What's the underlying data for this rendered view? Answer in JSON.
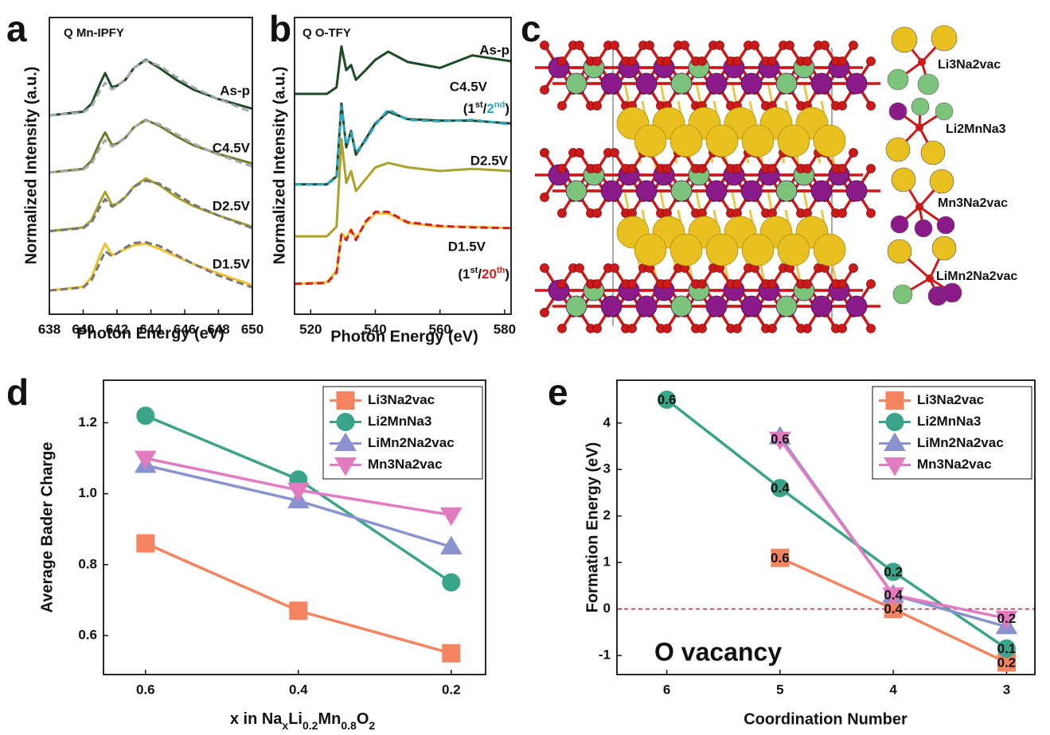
{
  "chart_data": [
    {
      "type": "line",
      "panel_label": "a",
      "title": "Q Mn-IPFY",
      "x_label": "Photon Energy (eV)",
      "y_label": "Normalized Intensity (a.u.)",
      "x": [
        638,
        640,
        640.5,
        641,
        641.3,
        641.7,
        642,
        642.5,
        643,
        643.7,
        644.5,
        645.5,
        646.5,
        648,
        650
      ],
      "xlim": [
        638,
        650
      ],
      "xticks": [
        638,
        640,
        642,
        644,
        646,
        648,
        650
      ],
      "ylim": [
        0,
        4
      ],
      "legend": false,
      "series": [
        {
          "name": "As-p",
          "color": "#1d4a27",
          "values": [
            2.68,
            2.73,
            2.84,
            3.11,
            3.25,
            3.06,
            3.08,
            3.16,
            3.32,
            3.43,
            3.32,
            3.16,
            3.03,
            2.9,
            2.77
          ]
        },
        {
          "color": "#a8a8a8",
          "dash": true,
          "values": [
            2.68,
            2.72,
            2.8,
            3.02,
            3.12,
            3.03,
            3.07,
            3.17,
            3.32,
            3.42,
            3.35,
            3.2,
            3.06,
            2.9,
            2.72
          ]
        },
        {
          "name": "C4.5V",
          "color": "#6b7a2c",
          "values": [
            1.91,
            1.96,
            2.07,
            2.33,
            2.45,
            2.28,
            2.3,
            2.38,
            2.52,
            2.62,
            2.54,
            2.4,
            2.28,
            2.16,
            2.03
          ]
        },
        {
          "color": "#a8a8a8",
          "dash": true,
          "values": [
            1.91,
            1.95,
            2.03,
            2.25,
            2.35,
            2.26,
            2.29,
            2.38,
            2.52,
            2.61,
            2.56,
            2.43,
            2.3,
            2.15,
            1.99
          ]
        },
        {
          "name": "D2.5V",
          "color": "#a9a22a",
          "values": [
            1.12,
            1.17,
            1.27,
            1.52,
            1.65,
            1.47,
            1.49,
            1.58,
            1.72,
            1.83,
            1.74,
            1.58,
            1.46,
            1.33,
            1.18
          ]
        },
        {
          "color": "#777777",
          "dash": true,
          "values": [
            1.12,
            1.16,
            1.24,
            1.45,
            1.55,
            1.45,
            1.48,
            1.58,
            1.72,
            1.8,
            1.76,
            1.62,
            1.48,
            1.33,
            1.16
          ]
        },
        {
          "name": "D1.5V",
          "color": "#f1c22e",
          "values": [
            0.32,
            0.37,
            0.5,
            0.8,
            0.95,
            0.8,
            0.82,
            0.88,
            0.93,
            0.95,
            0.88,
            0.78,
            0.68,
            0.55,
            0.39
          ]
        },
        {
          "color": "#777777",
          "dash": true,
          "values": [
            0.32,
            0.36,
            0.46,
            0.7,
            0.85,
            0.78,
            0.82,
            0.9,
            0.96,
            0.97,
            0.92,
            0.8,
            0.68,
            0.52,
            0.36
          ]
        }
      ]
    },
    {
      "type": "line",
      "panel_label": "b",
      "title": "Q O-TFY",
      "x_label": "Photon Energy (eV)",
      "y_label": "Normalized Intensity (a.u.)",
      "x": [
        515,
        525,
        528,
        529.5,
        531,
        532.5,
        534,
        537,
        540,
        544,
        550,
        560,
        570,
        582
      ],
      "xlim": [
        515,
        582
      ],
      "xticks": [
        520,
        540,
        560,
        580
      ],
      "ylim": [
        0,
        4
      ],
      "legend": false,
      "series": [
        {
          "name": "As-p",
          "color": "#1d4a27",
          "values": [
            2.97,
            2.97,
            3.06,
            3.61,
            3.29,
            3.36,
            3.16,
            3.29,
            3.43,
            3.54,
            3.4,
            3.32,
            3.49,
            3.41
          ]
        },
        {
          "name": "C4.5V",
          "color": "#1d4a27",
          "values": [
            1.75,
            1.75,
            1.86,
            2.84,
            2.25,
            2.47,
            2.15,
            2.36,
            2.57,
            2.73,
            2.63,
            2.61,
            2.61,
            2.57
          ]
        },
        {
          "color": "#2aa6c4",
          "dash": true,
          "values": [
            1.75,
            1.75,
            1.84,
            2.8,
            2.28,
            2.45,
            2.18,
            2.34,
            2.55,
            2.76,
            2.62,
            2.6,
            2.62,
            2.56
          ]
        },
        {
          "name": "D2.5V",
          "color": "#aaa22a",
          "values": [
            1.05,
            1.05,
            1.18,
            2.36,
            1.77,
            1.93,
            1.66,
            1.82,
            1.98,
            2.04,
            1.98,
            1.93,
            1.96,
            1.93
          ]
        },
        {
          "name": "D1.5V",
          "color": "#f1c22e",
          "values": [
            0.41,
            0.43,
            0.59,
            1.09,
            1.02,
            1.15,
            1.02,
            1.23,
            1.36,
            1.36,
            1.23,
            1.18,
            1.18,
            1.16
          ]
        },
        {
          "color": "#d42020",
          "dash": true,
          "values": [
            0.41,
            0.42,
            0.56,
            1.07,
            1.0,
            1.13,
            1.0,
            1.25,
            1.38,
            1.38,
            1.24,
            1.19,
            1.17,
            1.16
          ]
        }
      ],
      "notes": [
        [
          "(1",
          "st",
          "/",
          "2",
          "nd",
          ")"
        ],
        [
          "(1",
          "st",
          "/",
          "20",
          "th",
          ")"
        ]
      ]
    },
    {
      "type": "line",
      "panel_label": "d",
      "y_label": "Average Bader Charge",
      "x_label": [
        "x in Na",
        "x",
        "Li",
        "0.2",
        "Mn",
        "0.8",
        "O",
        "2"
      ],
      "x": [
        0.6,
        0.4,
        0.2
      ],
      "xlim": [
        0.655,
        0.155
      ],
      "xticks": [
        0.6,
        0.4,
        0.2
      ],
      "ylim": [
        0.49,
        1.32
      ],
      "yticks": [
        0.6,
        0.8,
        {
          "value": 1,
          "label": "1.0"
        },
        1.2
      ],
      "legend": "upper right",
      "series": [
        {
          "name": "Li3Na2vac",
          "color": "#f4845f",
          "marker": "square",
          "values": [
            0.86,
            0.67,
            0.55
          ]
        },
        {
          "name": "Li2MnNa3",
          "color": "#3aa48a",
          "marker": "circle",
          "values": [
            1.22,
            1.04,
            0.75
          ]
        },
        {
          "name": "LiMn2Na2vac",
          "color": "#8a93cf",
          "marker": "triangle",
          "values": [
            1.08,
            0.98,
            0.85
          ]
        },
        {
          "name": "Mn3Na2vac",
          "color": "#e27bc0",
          "marker": "triangle-down",
          "values": [
            1.1,
            1.01,
            0.94
          ]
        }
      ]
    },
    {
      "type": "line",
      "panel_label": "e",
      "y_label": "Formation Energy (eV)",
      "x_label": "Coordination Number",
      "annotation": "O vacancy",
      "x": [
        6,
        5,
        4,
        3
      ],
      "xlim": [
        6.44,
        2.75
      ],
      "xticks": [
        6,
        5,
        4,
        3
      ],
      "ylim": [
        -1.41,
        4.92
      ],
      "yticks": [
        -1,
        0,
        1,
        2,
        3,
        4
      ],
      "legend": "upper right",
      "hline": 0,
      "hline_color": "#c0272d",
      "series": [
        {
          "name": "Li3Na2vac",
          "color": "#f4845f",
          "marker": "square",
          "values": [
            null,
            1.1,
            0.0,
            -1.15
          ],
          "point_notes": [
            null,
            "0.6",
            "0.4",
            "0.2"
          ],
          "note_color": "#111111"
        },
        {
          "name": "Li2MnNa3",
          "color": "#3aa48a",
          "marker": "circle",
          "values": [
            4.5,
            2.6,
            0.8,
            -0.85
          ],
          "point_notes": [
            "0.6",
            "0.4",
            "0.2",
            "0.1"
          ],
          "note_color": "#c0272d"
        },
        {
          "name": "LiMn2Na2vac",
          "color": "#8a93cf",
          "marker": "triangle",
          "values": [
            null,
            3.7,
            0.3,
            -0.38
          ]
        },
        {
          "name": "Mn3Na2vac",
          "color": "#e27bc0",
          "marker": "triangle-down",
          "values": [
            null,
            3.65,
            0.3,
            -0.2
          ],
          "point_notes": [
            null,
            "0.6",
            "0.4",
            "0.2"
          ],
          "note_color": "#111111"
        }
      ]
    }
  ],
  "structure": {
    "panel_label": "c",
    "labels": [
      {
        "text": "Li3Na2vac",
        "color": "#e0801a"
      },
      {
        "text": "Li2MnNa3",
        "color": "#2e9e5e"
      },
      {
        "text": "Mn3Na2vac",
        "color": "#7a4a9a"
      },
      {
        "text": "LiMn2Na2vac",
        "color": "#e060b0"
      }
    ]
  }
}
